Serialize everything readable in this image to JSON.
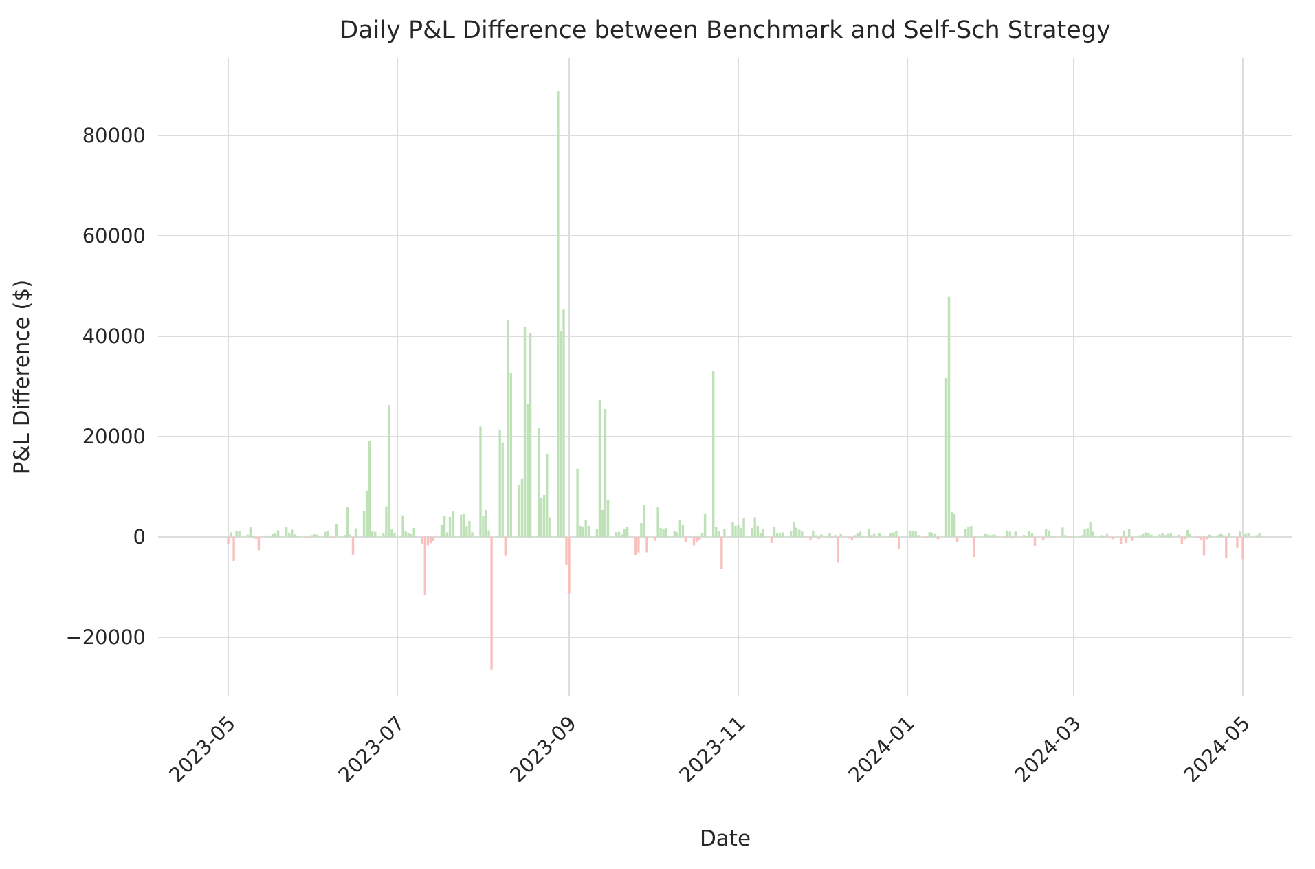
{
  "chart_data": {
    "type": "bar",
    "title": "Daily P&L Difference between Benchmark and Self-Sch Strategy",
    "xlabel": "Date",
    "ylabel": "P&L Difference ($)",
    "ylim": [
      -31600,
      95300
    ],
    "yticks": [
      -20000,
      0,
      20000,
      40000,
      60000,
      80000
    ],
    "xticks": [
      {
        "date": "2023-05-01",
        "label": "2023-05"
      },
      {
        "date": "2023-07-01",
        "label": "2023-07"
      },
      {
        "date": "2023-09-01",
        "label": "2023-09"
      },
      {
        "date": "2023-11-01",
        "label": "2023-11"
      },
      {
        "date": "2024-01-01",
        "label": "2024-01"
      },
      {
        "date": "2024-03-01",
        "label": "2024-03"
      },
      {
        "date": "2024-05-01",
        "label": "2024-05"
      }
    ],
    "grid": true,
    "legend_position": "none",
    "series_name": "daily_pnl_difference_usd",
    "colors": {
      "positive": "#bfe1b8",
      "negative": "#f9c0bd",
      "grid": "#dcdcdc",
      "text": "#262626",
      "background": "#ffffff"
    },
    "points": [
      [
        "2023-05-01",
        -1500
      ],
      [
        "2023-05-02",
        900
      ],
      [
        "2023-05-03",
        -4800
      ],
      [
        "2023-05-04",
        1100
      ],
      [
        "2023-05-05",
        1200
      ],
      [
        "2023-05-08",
        450
      ],
      [
        "2023-05-09",
        1900
      ],
      [
        "2023-05-10",
        300
      ],
      [
        "2023-05-11",
        -400
      ],
      [
        "2023-05-12",
        -2650
      ],
      [
        "2023-05-15",
        300
      ],
      [
        "2023-05-16",
        250
      ],
      [
        "2023-05-17",
        550
      ],
      [
        "2023-05-18",
        800
      ],
      [
        "2023-05-19",
        1300
      ],
      [
        "2023-05-22",
        1900
      ],
      [
        "2023-05-23",
        800
      ],
      [
        "2023-05-24",
        1450
      ],
      [
        "2023-05-25",
        500
      ],
      [
        "2023-05-26",
        100
      ],
      [
        "2023-05-29",
        -250
      ],
      [
        "2023-05-30",
        -150
      ],
      [
        "2023-05-31",
        350
      ],
      [
        "2023-06-01",
        550
      ],
      [
        "2023-06-02",
        450
      ],
      [
        "2023-06-05",
        1000
      ],
      [
        "2023-06-06",
        1250
      ],
      [
        "2023-06-07",
        -150
      ],
      [
        "2023-06-08",
        -200
      ],
      [
        "2023-06-09",
        2600
      ],
      [
        "2023-06-12",
        400
      ],
      [
        "2023-06-13",
        6000
      ],
      [
        "2023-06-14",
        500
      ],
      [
        "2023-06-15",
        -3550
      ],
      [
        "2023-06-16",
        1700
      ],
      [
        "2023-06-19",
        5100
      ],
      [
        "2023-06-20",
        9200
      ],
      [
        "2023-06-21",
        19100
      ],
      [
        "2023-06-22",
        1200
      ],
      [
        "2023-06-23",
        1000
      ],
      [
        "2023-06-26",
        800
      ],
      [
        "2023-06-27",
        6100
      ],
      [
        "2023-06-28",
        26300
      ],
      [
        "2023-06-29",
        1500
      ],
      [
        "2023-06-30",
        700
      ],
      [
        "2023-07-03",
        4300
      ],
      [
        "2023-07-04",
        1250
      ],
      [
        "2023-07-05",
        800
      ],
      [
        "2023-07-06",
        550
      ],
      [
        "2023-07-07",
        1780
      ],
      [
        "2023-07-10",
        -1500
      ],
      [
        "2023-07-11",
        -11650
      ],
      [
        "2023-07-12",
        -1700
      ],
      [
        "2023-07-13",
        -1280
      ],
      [
        "2023-07-14",
        -820
      ],
      [
        "2023-07-17",
        2470
      ],
      [
        "2023-07-18",
        4200
      ],
      [
        "2023-07-19",
        900
      ],
      [
        "2023-07-20",
        3970
      ],
      [
        "2023-07-21",
        5120
      ],
      [
        "2023-07-24",
        4430
      ],
      [
        "2023-07-25",
        4660
      ],
      [
        "2023-07-26",
        2150
      ],
      [
        "2023-07-27",
        3150
      ],
      [
        "2023-07-28",
        900
      ],
      [
        "2023-07-31",
        22000
      ],
      [
        "2023-08-01",
        4200
      ],
      [
        "2023-08-02",
        5350
      ],
      [
        "2023-08-03",
        1300
      ],
      [
        "2023-08-04",
        -26400
      ],
      [
        "2023-08-07",
        21340
      ],
      [
        "2023-08-08",
        18830
      ],
      [
        "2023-08-09",
        -3790
      ],
      [
        "2023-08-10",
        43290
      ],
      [
        "2023-08-11",
        32740
      ],
      [
        "2023-08-14",
        10400
      ],
      [
        "2023-08-15",
        11550
      ],
      [
        "2023-08-16",
        41920
      ],
      [
        "2023-08-17",
        26440
      ],
      [
        "2023-08-18",
        40690
      ],
      [
        "2023-08-21",
        21640
      ],
      [
        "2023-08-22",
        7670
      ],
      [
        "2023-08-23",
        8360
      ],
      [
        "2023-08-24",
        16580
      ],
      [
        "2023-08-25",
        3900
      ],
      [
        "2023-08-28",
        88800
      ],
      [
        "2023-08-29",
        41000
      ],
      [
        "2023-08-30",
        45300
      ],
      [
        "2023-08-31",
        -5600
      ],
      [
        "2023-09-01",
        -11300
      ],
      [
        "2023-09-04",
        13600
      ],
      [
        "2023-09-05",
        2200
      ],
      [
        "2023-09-06",
        2050
      ],
      [
        "2023-09-07",
        3300
      ],
      [
        "2023-09-08",
        2200
      ],
      [
        "2023-09-11",
        1500
      ],
      [
        "2023-09-12",
        27260
      ],
      [
        "2023-09-13",
        5350
      ],
      [
        "2023-09-14",
        25480
      ],
      [
        "2023-09-15",
        7400
      ],
      [
        "2023-09-18",
        960
      ],
      [
        "2023-09-19",
        1000
      ],
      [
        "2023-09-20",
        500
      ],
      [
        "2023-09-21",
        1500
      ],
      [
        "2023-09-22",
        2050
      ],
      [
        "2023-09-25",
        -3560
      ],
      [
        "2023-09-26",
        -3100
      ],
      [
        "2023-09-27",
        2740
      ],
      [
        "2023-09-28",
        6300
      ],
      [
        "2023-09-29",
        -3080
      ],
      [
        "2023-10-02",
        -780
      ],
      [
        "2023-10-03",
        5890
      ],
      [
        "2023-10-04",
        1780
      ],
      [
        "2023-10-05",
        1510
      ],
      [
        "2023-10-06",
        1780
      ],
      [
        "2023-10-09",
        1100
      ],
      [
        "2023-10-10",
        900
      ],
      [
        "2023-10-11",
        3290
      ],
      [
        "2023-10-12",
        2380
      ],
      [
        "2023-10-13",
        -1000
      ],
      [
        "2023-10-16",
        -1700
      ],
      [
        "2023-10-17",
        -1000
      ],
      [
        "2023-10-18",
        -550
      ],
      [
        "2023-10-19",
        800
      ],
      [
        "2023-10-20",
        4520
      ],
      [
        "2023-10-23",
        33150
      ],
      [
        "2023-10-24",
        2050
      ],
      [
        "2023-10-25",
        1100
      ],
      [
        "2023-10-26",
        -6300
      ],
      [
        "2023-10-27",
        1510
      ],
      [
        "2023-10-30",
        2880
      ],
      [
        "2023-10-31",
        2190
      ],
      [
        "2023-11-01",
        2380
      ],
      [
        "2023-11-02",
        1780
      ],
      [
        "2023-11-03",
        3700
      ],
      [
        "2023-11-06",
        1780
      ],
      [
        "2023-11-07",
        3900
      ],
      [
        "2023-11-08",
        2190
      ],
      [
        "2023-11-09",
        820
      ],
      [
        "2023-11-10",
        1650
      ],
      [
        "2023-11-13",
        -1200
      ],
      [
        "2023-11-14",
        1960
      ],
      [
        "2023-11-15",
        820
      ],
      [
        "2023-11-16",
        690
      ],
      [
        "2023-11-17",
        910
      ],
      [
        "2023-11-20",
        1140
      ],
      [
        "2023-11-21",
        2970
      ],
      [
        "2023-11-22",
        1830
      ],
      [
        "2023-11-23",
        1420
      ],
      [
        "2023-11-24",
        1050
      ],
      [
        "2023-11-27",
        -550
      ],
      [
        "2023-11-28",
        1280
      ],
      [
        "2023-11-29",
        370
      ],
      [
        "2023-11-30",
        -410
      ],
      [
        "2023-12-01",
        500
      ],
      [
        "2023-12-04",
        820
      ],
      [
        "2023-12-05",
        -230
      ],
      [
        "2023-12-06",
        370
      ],
      [
        "2023-12-07",
        -5120
      ],
      [
        "2023-12-08",
        590
      ],
      [
        "2023-12-11",
        -320
      ],
      [
        "2023-12-12",
        -640
      ],
      [
        "2023-12-13",
        370
      ],
      [
        "2023-12-14",
        820
      ],
      [
        "2023-12-15",
        1050
      ],
      [
        "2023-12-18",
        1510
      ],
      [
        "2023-12-19",
        370
      ],
      [
        "2023-12-20",
        590
      ],
      [
        "2023-12-21",
        -230
      ],
      [
        "2023-12-22",
        820
      ],
      [
        "2023-12-26",
        690
      ],
      [
        "2023-12-27",
        910
      ],
      [
        "2023-12-28",
        1140
      ],
      [
        "2023-12-29",
        -2400
      ],
      [
        "2024-01-02",
        1280
      ],
      [
        "2024-01-03",
        1140
      ],
      [
        "2024-01-04",
        1190
      ],
      [
        "2024-01-05",
        370
      ],
      [
        "2024-01-08",
        -200
      ],
      [
        "2024-01-09",
        960
      ],
      [
        "2024-01-10",
        690
      ],
      [
        "2024-01-11",
        590
      ],
      [
        "2024-01-12",
        -460
      ],
      [
        "2024-01-15",
        31640
      ],
      [
        "2024-01-16",
        47850
      ],
      [
        "2024-01-17",
        4930
      ],
      [
        "2024-01-18",
        4700
      ],
      [
        "2024-01-19",
        -1000
      ],
      [
        "2024-01-22",
        1510
      ],
      [
        "2024-01-23",
        1960
      ],
      [
        "2024-01-24",
        2190
      ],
      [
        "2024-01-25",
        -3970
      ],
      [
        "2024-01-26",
        250
      ],
      [
        "2024-01-29",
        590
      ],
      [
        "2024-01-30",
        500
      ],
      [
        "2024-01-31",
        370
      ],
      [
        "2024-02-01",
        500
      ],
      [
        "2024-02-02",
        370
      ],
      [
        "2024-02-05",
        -90
      ],
      [
        "2024-02-06",
        1280
      ],
      [
        "2024-02-07",
        1050
      ],
      [
        "2024-02-08",
        -320
      ],
      [
        "2024-02-09",
        1050
      ],
      [
        "2024-02-12",
        400
      ],
      [
        "2024-02-13",
        200
      ],
      [
        "2024-02-14",
        1140
      ],
      [
        "2024-02-15",
        820
      ],
      [
        "2024-02-16",
        -1780
      ],
      [
        "2024-02-19",
        -550
      ],
      [
        "2024-02-20",
        1600
      ],
      [
        "2024-02-21",
        1280
      ],
      [
        "2024-02-22",
        -230
      ],
      [
        "2024-02-23",
        230
      ],
      [
        "2024-02-26",
        1870
      ],
      [
        "2024-02-27",
        370
      ],
      [
        "2024-02-28",
        150
      ],
      [
        "2024-02-29",
        -100
      ],
      [
        "2024-03-01",
        230
      ],
      [
        "2024-03-04",
        370
      ],
      [
        "2024-03-05",
        1510
      ],
      [
        "2024-03-06",
        1740
      ],
      [
        "2024-03-07",
        3010
      ],
      [
        "2024-03-08",
        1050
      ],
      [
        "2024-03-11",
        370
      ],
      [
        "2024-03-12",
        250
      ],
      [
        "2024-03-13",
        590
      ],
      [
        "2024-03-14",
        -150
      ],
      [
        "2024-03-15",
        -460
      ],
      [
        "2024-03-18",
        -1460
      ],
      [
        "2024-03-19",
        1280
      ],
      [
        "2024-03-20",
        -1230
      ],
      [
        "2024-03-21",
        1600
      ],
      [
        "2024-03-22",
        -780
      ],
      [
        "2024-03-25",
        370
      ],
      [
        "2024-03-26",
        590
      ],
      [
        "2024-03-27",
        910
      ],
      [
        "2024-03-28",
        820
      ],
      [
        "2024-03-29",
        460
      ],
      [
        "2024-04-01",
        500
      ],
      [
        "2024-04-02",
        690
      ],
      [
        "2024-04-03",
        370
      ],
      [
        "2024-04-04",
        590
      ],
      [
        "2024-04-05",
        820
      ],
      [
        "2024-04-08",
        460
      ],
      [
        "2024-04-09",
        -1370
      ],
      [
        "2024-04-10",
        -460
      ],
      [
        "2024-04-11",
        1370
      ],
      [
        "2024-04-12",
        590
      ],
      [
        "2024-04-15",
        -230
      ],
      [
        "2024-04-16",
        -550
      ],
      [
        "2024-04-17",
        -3750
      ],
      [
        "2024-04-18",
        -460
      ],
      [
        "2024-04-19",
        460
      ],
      [
        "2024-04-22",
        370
      ],
      [
        "2024-04-23",
        590
      ],
      [
        "2024-04-24",
        370
      ],
      [
        "2024-04-25",
        -4200
      ],
      [
        "2024-04-26",
        820
      ],
      [
        "2024-04-29",
        -2150
      ],
      [
        "2024-04-30",
        1050
      ],
      [
        "2024-05-01",
        -4430
      ],
      [
        "2024-05-02",
        590
      ],
      [
        "2024-05-03",
        820
      ],
      [
        "2024-05-06",
        370
      ],
      [
        "2024-05-07",
        690
      ]
    ]
  }
}
